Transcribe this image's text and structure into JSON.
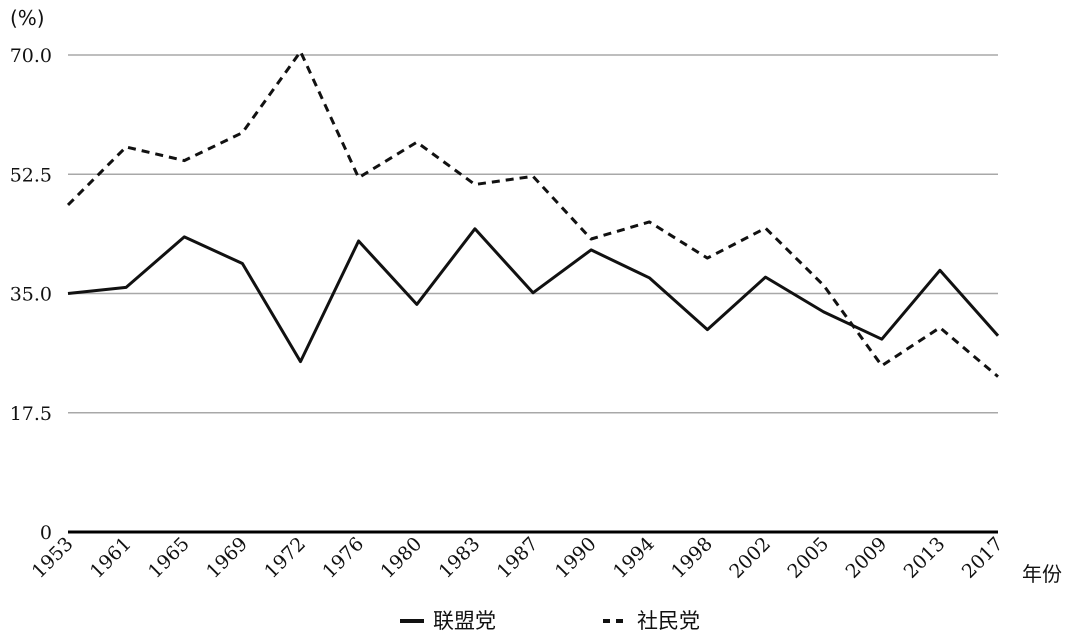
{
  "chart_data": {
    "type": "line",
    "ylabel": "(%)",
    "xlabel": "年份",
    "ylim": [
      0,
      70
    ],
    "yticks": [
      "0",
      "17.5",
      "35.0",
      "52.5",
      "70.0"
    ],
    "ytick_values": [
      0,
      17.5,
      35,
      52.5,
      70
    ],
    "grid": true,
    "legend_position": "bottom-center",
    "categories": [
      "1953",
      "1961",
      "1965",
      "1969",
      "1972",
      "1976",
      "1980",
      "1983",
      "1987",
      "1990",
      "1994",
      "1998",
      "2002",
      "2005",
      "2009",
      "2013",
      "2017"
    ],
    "series": [
      {
        "name": "联盟党",
        "style": "solid",
        "values": [
          35.0,
          35.9,
          43.3,
          39.4,
          25.0,
          42.7,
          33.4,
          44.5,
          35.1,
          41.4,
          37.3,
          29.7,
          37.4,
          32.3,
          28.3,
          38.4,
          28.8
        ]
      },
      {
        "name": "社民党",
        "style": "dashed",
        "values": [
          48.0,
          56.5,
          54.5,
          58.6,
          70.5,
          52.0,
          57.2,
          51.0,
          52.2,
          43.0,
          45.5,
          40.2,
          44.6,
          36.2,
          24.4,
          30.0,
          22.8
        ]
      }
    ]
  }
}
